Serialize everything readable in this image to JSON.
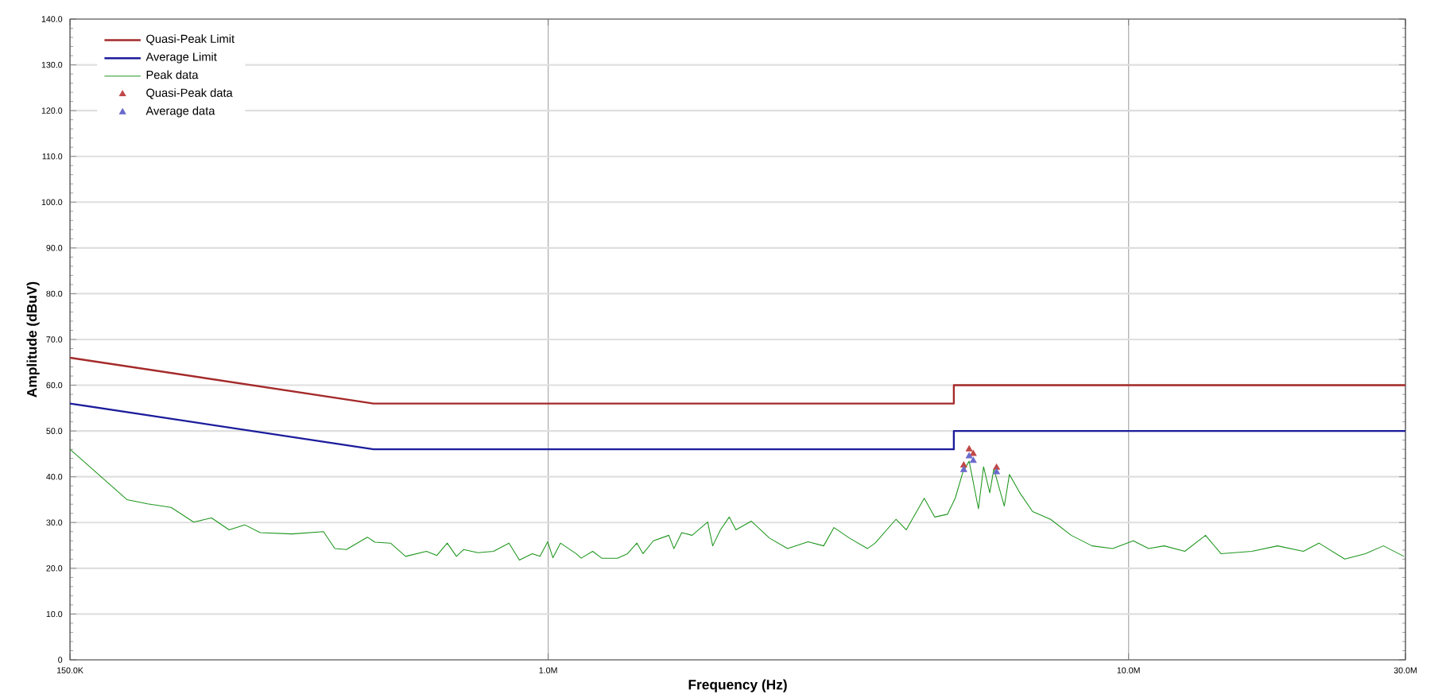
{
  "chart_data": {
    "type": "line",
    "xlabel": "Frequency (Hz)",
    "ylabel": "Amplitude (dBuV)",
    "log": "x",
    "grid": true,
    "legend": "top left",
    "xlim": [
      150000,
      30000000
    ],
    "ylim": [
      0,
      140
    ],
    "xticks": [
      {
        "value": 150000,
        "label": "150.0K"
      },
      {
        "value": 1000000,
        "label": "1.0M"
      },
      {
        "value": 10000000,
        "label": "10.0M"
      },
      {
        "value": 30000000,
        "label": "30.0M"
      }
    ],
    "yticks": [
      0,
      {
        "value": 10,
        "label": "10.0"
      },
      {
        "value": 20,
        "label": "20.0"
      },
      {
        "value": 30,
        "label": "30.0"
      },
      {
        "value": 40,
        "label": "40.0"
      },
      {
        "value": 50,
        "label": "50.0"
      },
      {
        "value": 60,
        "label": "60.0"
      },
      {
        "value": 70,
        "label": "70.0"
      },
      {
        "value": 80,
        "label": "80.0"
      },
      {
        "value": 90,
        "label": "90.0"
      },
      {
        "value": 100,
        "label": "100.0"
      },
      {
        "value": 110,
        "label": "110.0"
      },
      {
        "value": 120,
        "label": "120.0"
      },
      {
        "value": 130,
        "label": "130.0"
      },
      {
        "value": 140,
        "label": "140.0"
      }
    ],
    "series": [
      {
        "name": "Quasi-Peak Limit",
        "color": "#a52a2a",
        "x": [
          150000,
          500000,
          5000000,
          5000000,
          30000000
        ],
        "values": [
          66,
          56,
          56,
          60,
          60
        ]
      },
      {
        "name": "Average Limit",
        "color": "#1c1c9c",
        "x": [
          150000,
          500000,
          5000000,
          5000000,
          30000000
        ],
        "values": [
          56,
          46,
          46,
          50,
          50
        ]
      },
      {
        "name": "Peak data",
        "color": "#1e961e",
        "x": [
          150000,
          188000,
          204000,
          224000,
          245000,
          263000,
          282000,
          300000,
          319000,
          362000,
          410000,
          429000,
          449000,
          488000,
          503000,
          535000,
          568000,
          617000,
          643000,
          670000,
          695000,
          715000,
          757000,
          805000,
          856000,
          892000,
          939000,
          968000,
          998000,
          1019000,
          1050000,
          1117000,
          1140000,
          1193000,
          1237000,
          1316000,
          1370000,
          1422000,
          1457000,
          1518000,
          1614000,
          1647000,
          1699000,
          1770000,
          1883000,
          1921000,
          1981000,
          2051000,
          2106000,
          2239000,
          2406000,
          2585000,
          2805000,
          2983000,
          3108000,
          3305000,
          3549000,
          3660000,
          3974000,
          4139000,
          4446000,
          4634000,
          4875000,
          5027000,
          5185000,
          5313000,
          5513000,
          5626000,
          5766000,
          5860000,
          6109000,
          6234000,
          6495000,
          6835000,
          7341000,
          7966000,
          8648000,
          9387000,
          10190000,
          10830000,
          11520000,
          12500000,
          13570000,
          14430000,
          16310000,
          18060000,
          20010000,
          21280000,
          23580000,
          25590000,
          27490000,
          29830000
        ],
        "values": [
          46.0,
          35.0,
          34.1,
          33.3,
          30.1,
          31.0,
          28.4,
          29.5,
          27.8,
          27.5,
          28.0,
          24.3,
          24.1,
          26.8,
          25.7,
          25.5,
          22.6,
          23.7,
          22.8,
          25.5,
          22.6,
          24.1,
          23.4,
          23.7,
          25.5,
          21.8,
          23.2,
          22.6,
          25.8,
          22.3,
          25.5,
          23.2,
          22.2,
          23.7,
          22.2,
          22.2,
          23.2,
          25.5,
          23.2,
          26.0,
          27.2,
          24.3,
          27.8,
          27.2,
          30.1,
          24.9,
          28.4,
          31.2,
          28.4,
          30.3,
          26.6,
          24.3,
          25.8,
          24.9,
          28.9,
          26.6,
          24.3,
          25.5,
          30.7,
          28.4,
          35.3,
          31.2,
          31.8,
          35.3,
          41.1,
          43.4,
          33.0,
          42.2,
          36.5,
          41.7,
          33.6,
          40.5,
          36.5,
          32.4,
          30.7,
          27.2,
          24.9,
          24.3,
          26.0,
          24.3,
          24.9,
          23.7,
          27.2,
          23.2,
          23.7,
          24.9,
          23.7,
          25.5,
          22.0,
          23.2,
          24.9,
          22.6
        ]
      },
      {
        "name": "Quasi-Peak data",
        "type": "scatter",
        "marker": "triangle",
        "color": "#c04848",
        "x": [
          5200000,
          5313000,
          5400000,
          5924000
        ],
        "values": [
          42.5,
          46,
          45,
          42
        ]
      },
      {
        "name": "Average data",
        "type": "scatter",
        "marker": "triangle",
        "color": "#6a6acd",
        "x": [
          5200000,
          5313000,
          5400000,
          5924000
        ],
        "values": [
          41.5,
          44.5,
          43.5,
          41
        ]
      }
    ]
  }
}
